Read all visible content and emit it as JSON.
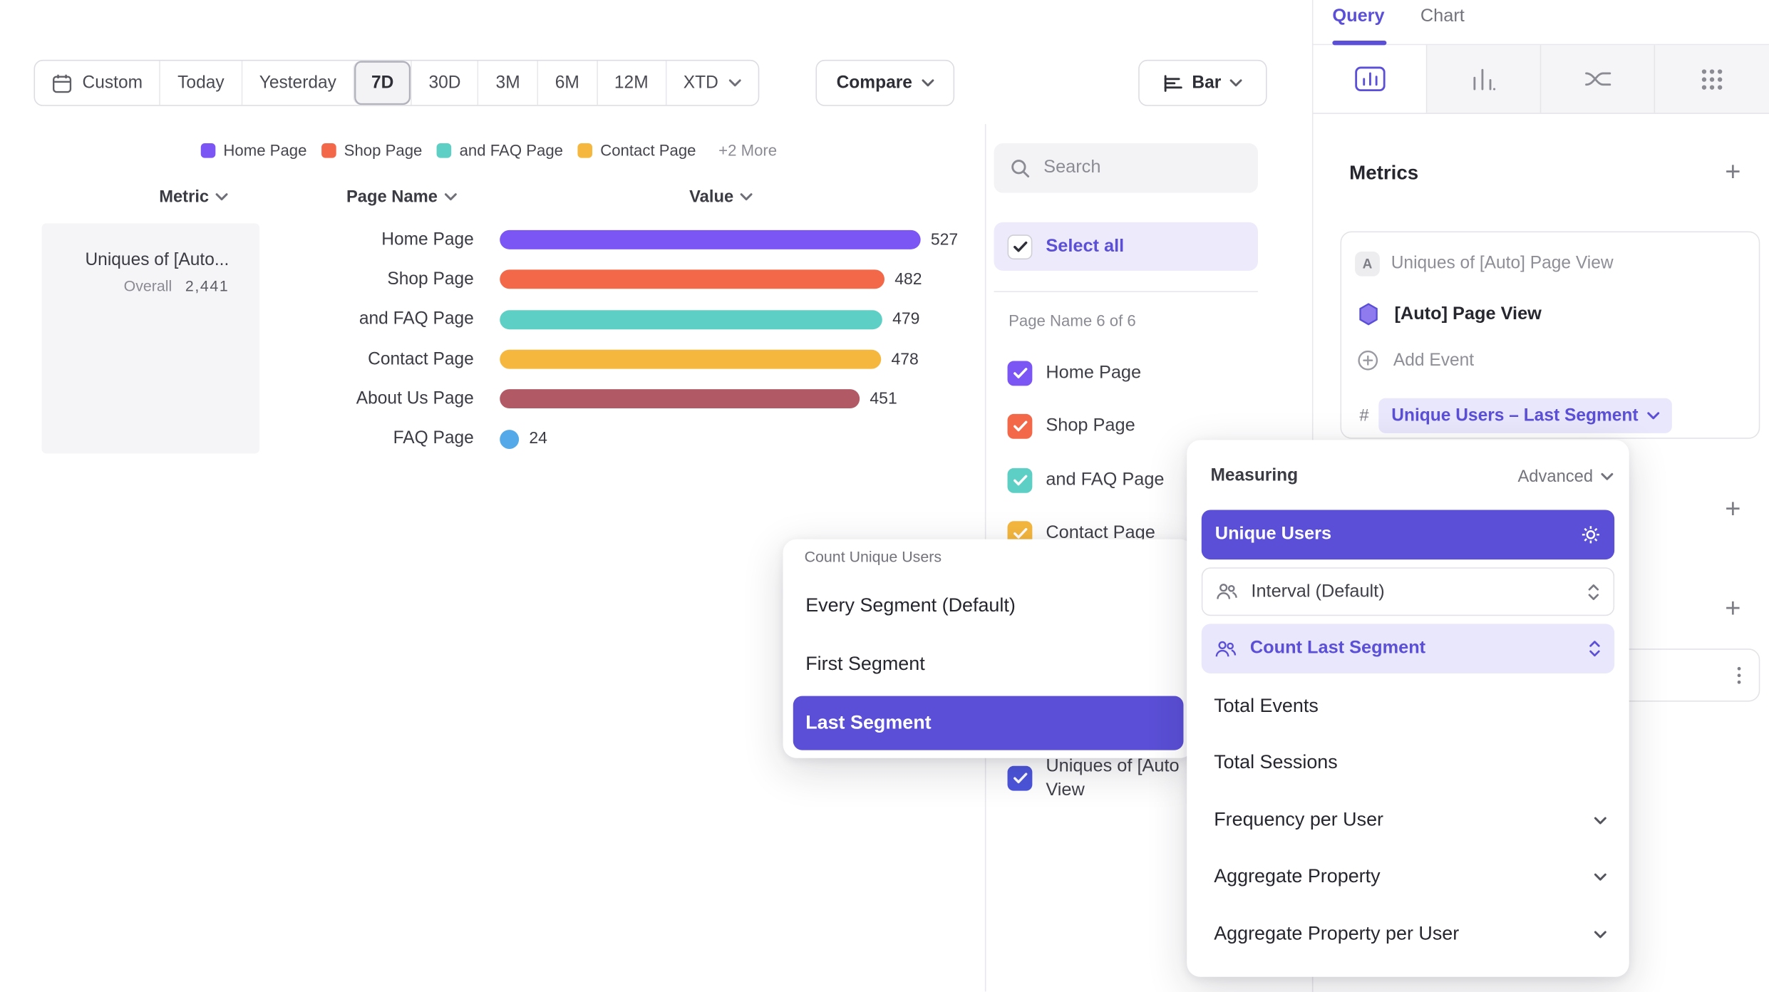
{
  "colors": {
    "accent": "#5A4FD6",
    "accent_light_bg": "#ECEAFB",
    "chip_bg": "#E9E7FB",
    "count_row_bg": "#E9E7FC"
  },
  "icons": {
    "plus": "+",
    "hash": "#"
  },
  "toolbar": {
    "custom_label": "Custom",
    "ranges": [
      "Today",
      "Yesterday",
      "7D",
      "30D",
      "3M",
      "6M",
      "12M",
      "XTD"
    ],
    "selected_range": "7D",
    "compare_label": "Compare",
    "chart_type_label": "Bar"
  },
  "legend": {
    "items": [
      {
        "label": "Home Page",
        "color": "#7C56F4"
      },
      {
        "label": "Shop Page",
        "color": "#F4684A"
      },
      {
        "label": "and FAQ Page",
        "color": "#5ECFC4"
      },
      {
        "label": "Contact Page",
        "color": "#F5B73E"
      }
    ],
    "more_label": "+2 More"
  },
  "table_headers": {
    "metric": "Metric",
    "page_name": "Page Name",
    "value": "Value"
  },
  "chart_data": {
    "type": "bar",
    "orientation": "horizontal",
    "metric_name": "Uniques of [Auto...",
    "overall_label": "Overall",
    "overall_value": "2,441",
    "categories": [
      "Home Page",
      "Shop Page",
      "and FAQ Page",
      "Contact Page",
      "About Us Page",
      "FAQ Page"
    ],
    "values": [
      527,
      482,
      479,
      478,
      451,
      24
    ],
    "colors": [
      "#7C56F4",
      "#F4684A",
      "#5ECFC4",
      "#F5B73E",
      "#B25966",
      "#54A9E8"
    ],
    "legend_position": "top",
    "grid": false
  },
  "filter_panel": {
    "search_placeholder": "Search",
    "select_all_label": "Select all",
    "group_label": "Page Name 6 of 6",
    "items": [
      {
        "label": "Home Page",
        "color": "#7C56F4",
        "checked": true
      },
      {
        "label": "Shop Page",
        "color": "#F4684A",
        "checked": true
      },
      {
        "label": "and FAQ Page",
        "color": "#5ECFC4",
        "checked": true
      },
      {
        "label": "Contact Page",
        "color": "#F5B73E",
        "checked": true
      }
    ],
    "metric_item": {
      "label_line1": "Uniques of [Auto",
      "label_line2": "View",
      "color": "#4C55DB",
      "checked": true
    }
  },
  "segment_popover": {
    "title": "Count Unique Users",
    "options": [
      "Every Segment (Default)",
      "First Segment",
      "Last Segment"
    ],
    "selected_option": "Last Segment"
  },
  "measuring_popover": {
    "title": "Measuring",
    "advanced_label": "Advanced",
    "primary_option": "Unique Users",
    "interval_option": "Interval (Default)",
    "count_option": "Count Last Segment",
    "options": [
      "Total Events",
      "Total Sessions"
    ],
    "expandable_options": [
      "Frequency per User",
      "Aggregate Property",
      "Aggregate Property per User"
    ]
  },
  "query_panel": {
    "tabs": [
      "Query",
      "Chart"
    ],
    "active_tab": "Query",
    "metrics_title": "Metrics",
    "metric_card": {
      "badge": "A",
      "summary": "Uniques of [Auto] Page View",
      "event_label": "[Auto] Page View",
      "add_event_label": "Add Event",
      "number_symbol": "#",
      "measurement_chip": "Unique Users – Last Segment"
    }
  }
}
